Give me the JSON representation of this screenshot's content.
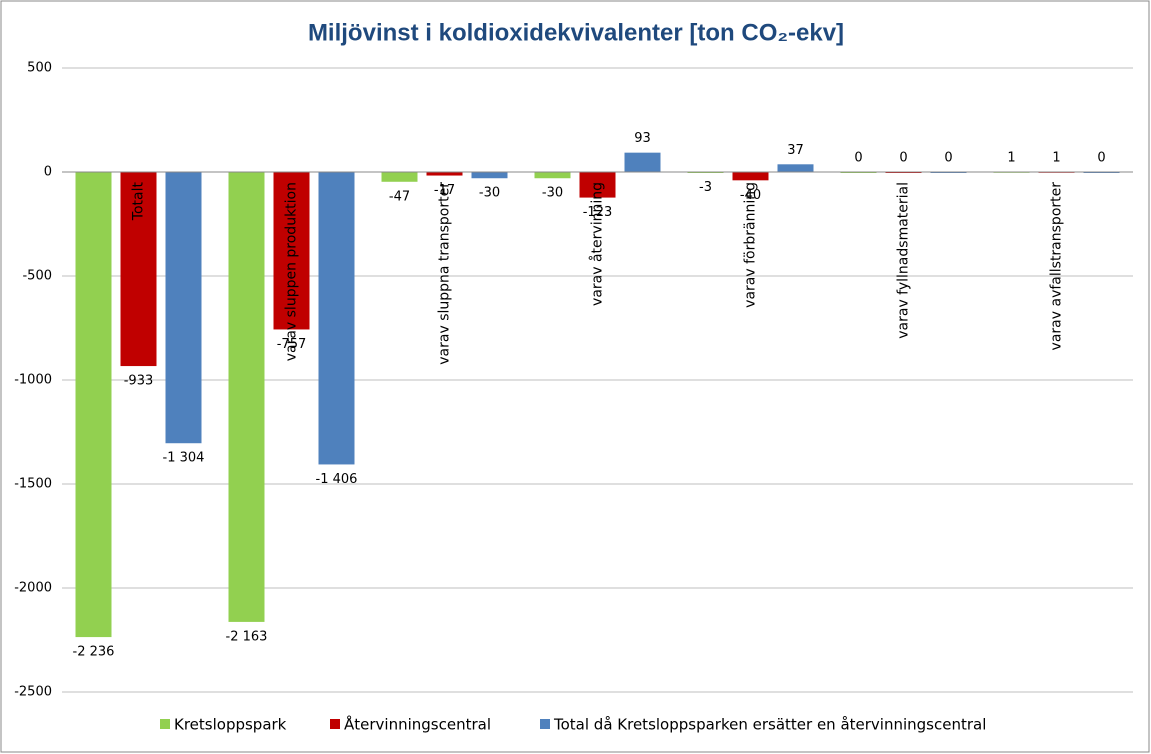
{
  "chart_data": {
    "type": "bar",
    "title": "Miljövinst i koldioxidekvivalenter [ton CO₂-ekv]",
    "categories": [
      "Totalt",
      "varav sluppen produktion",
      "varav sluppna transporter",
      "varav återvinning",
      "varav förbränning",
      "varav fyllnadsmaterial",
      "varav avfallstransporter"
    ],
    "series": [
      {
        "name": "Kretsloppspark",
        "color": "#92d050",
        "values": [
          -2236,
          -2163,
          -47,
          -30,
          -3,
          0,
          1
        ],
        "value_labels": [
          "-2 236",
          "-2 163",
          "-47",
          "-30",
          "-3",
          "0",
          "1"
        ]
      },
      {
        "name": "Återvinningscentral",
        "color": "#c00000",
        "values": [
          -933,
          -757,
          -17,
          -123,
          -40,
          0,
          1
        ],
        "value_labels": [
          "-933",
          "-757",
          "-17",
          "-123",
          "-40",
          "0",
          "1"
        ]
      },
      {
        "name": "Total då Kretsloppsparken ersätter en återvinningscentral",
        "color": "#4f81bd",
        "values": [
          -1304,
          -1406,
          -30,
          93,
          37,
          0,
          0
        ],
        "value_labels": [
          "-1 304",
          "-1 406",
          "-30",
          "93",
          "37",
          "0",
          "0"
        ]
      }
    ],
    "ylim": [
      -2500,
      500
    ],
    "yticks": [
      -2500,
      -2000,
      -1500,
      -1000,
      -500,
      0,
      500
    ],
    "grid": true,
    "legend": "bottom"
  }
}
